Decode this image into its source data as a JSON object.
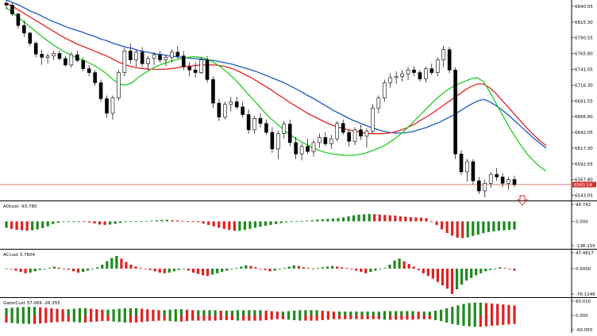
{
  "chart_data": [
    {
      "type": "candlestick",
      "price_axis": {
        "ticks": [
          "6840.05",
          "6815.30",
          "6790.55",
          "6765.80",
          "6741.05",
          "6716.30",
          "6691.55",
          "6666.80",
          "6642.05",
          "6617.30",
          "6592.55",
          "6567.80",
          "6543.05"
        ],
        "ylim": [
          6535,
          6850
        ]
      },
      "current_price": {
        "value": 6560,
        "label": "6560.14",
        "color": "#d32f2f"
      },
      "candles": [
        [
          6845,
          6852,
          6835,
          6842
        ],
        [
          6842,
          6846,
          6825,
          6828
        ],
        [
          6828,
          6830,
          6805,
          6810
        ],
        [
          6810,
          6818,
          6792,
          6798
        ],
        [
          6798,
          6800,
          6778,
          6782
        ],
        [
          6782,
          6785,
          6760,
          6765
        ],
        [
          6765,
          6772,
          6748,
          6760
        ],
        [
          6760,
          6766,
          6750,
          6762
        ],
        [
          6762,
          6770,
          6756,
          6766
        ],
        [
          6766,
          6770,
          6755,
          6758
        ],
        [
          6758,
          6762,
          6745,
          6748
        ],
        [
          6748,
          6768,
          6744,
          6764
        ],
        [
          6764,
          6770,
          6752,
          6755
        ],
        [
          6755,
          6760,
          6738,
          6742
        ],
        [
          6742,
          6748,
          6730,
          6736
        ],
        [
          6736,
          6740,
          6715,
          6720
        ],
        [
          6720,
          6725,
          6690,
          6695
        ],
        [
          6695,
          6700,
          6665,
          6672
        ],
        [
          6672,
          6700,
          6662,
          6696
        ],
        [
          6696,
          6740,
          6692,
          6736
        ],
        [
          6736,
          6775,
          6730,
          6770
        ],
        [
          6770,
          6782,
          6750,
          6756
        ],
        [
          6756,
          6772,
          6745,
          6768
        ],
        [
          6768,
          6776,
          6745,
          6750
        ],
        [
          6750,
          6762,
          6740,
          6758
        ],
        [
          6758,
          6768,
          6748,
          6764
        ],
        [
          6764,
          6770,
          6752,
          6756
        ],
        [
          6756,
          6764,
          6746,
          6760
        ],
        [
          6760,
          6772,
          6752,
          6768
        ],
        [
          6768,
          6778,
          6758,
          6762
        ],
        [
          6762,
          6770,
          6740,
          6745
        ],
        [
          6745,
          6752,
          6730,
          6740
        ],
        [
          6740,
          6752,
          6728,
          6736
        ],
        [
          6736,
          6760,
          6734,
          6756
        ],
        [
          6756,
          6762,
          6720,
          6725
        ],
        [
          6725,
          6730,
          6680,
          6688
        ],
        [
          6688,
          6695,
          6660,
          6666
        ],
        [
          6666,
          6690,
          6662,
          6686
        ],
        [
          6686,
          6698,
          6675,
          6690
        ],
        [
          6690,
          6698,
          6678,
          6682
        ],
        [
          6682,
          6690,
          6665,
          6670
        ],
        [
          6670,
          6678,
          6640,
          6646
        ],
        [
          6646,
          6668,
          6640,
          6664
        ],
        [
          6664,
          6672,
          6650,
          6656
        ],
        [
          6656,
          6662,
          6638,
          6642
        ],
        [
          6642,
          6650,
          6610,
          6616
        ],
        [
          6616,
          6645,
          6600,
          6640
        ],
        [
          6640,
          6660,
          6632,
          6655
        ],
        [
          6655,
          6662,
          6620,
          6626
        ],
        [
          6626,
          6635,
          6600,
          6608
        ],
        [
          6608,
          6625,
          6598,
          6620
        ],
        [
          6620,
          6632,
          6608,
          6612
        ],
        [
          6612,
          6630,
          6604,
          6626
        ],
        [
          6626,
          6640,
          6618,
          6634
        ],
        [
          6634,
          6642,
          6620,
          6624
        ],
        [
          6624,
          6638,
          6616,
          6632
        ],
        [
          6632,
          6660,
          6628,
          6656
        ],
        [
          6656,
          6662,
          6638,
          6642
        ],
        [
          6642,
          6646,
          6620,
          6628
        ],
        [
          6628,
          6650,
          6622,
          6646
        ],
        [
          6646,
          6654,
          6630,
          6636
        ],
        [
          6636,
          6648,
          6618,
          6644
        ],
        [
          6644,
          6686,
          6640,
          6680
        ],
        [
          6680,
          6700,
          6672,
          6696
        ],
        [
          6696,
          6725,
          6690,
          6720
        ],
        [
          6720,
          6735,
          6712,
          6728
        ],
        [
          6728,
          6738,
          6718,
          6730
        ],
        [
          6730,
          6740,
          6722,
          6734
        ],
        [
          6734,
          6745,
          6724,
          6740
        ],
        [
          6740,
          6746,
          6730,
          6736
        ],
        [
          6736,
          6740,
          6722,
          6726
        ],
        [
          6726,
          6745,
          6720,
          6742
        ],
        [
          6742,
          6750,
          6732,
          6736
        ],
        [
          6736,
          6760,
          6730,
          6756
        ],
        [
          6756,
          6778,
          6745,
          6772
        ],
        [
          6772,
          6776,
          6735,
          6740
        ],
        [
          6740,
          6744,
          6600,
          6608
        ],
        [
          6608,
          6614,
          6575,
          6580
        ],
        [
          6580,
          6600,
          6565,
          6596
        ],
        [
          6596,
          6600,
          6560,
          6566
        ],
        [
          6566,
          6572,
          6545,
          6550
        ],
        [
          6550,
          6568,
          6540,
          6562
        ],
        [
          6562,
          6580,
          6555,
          6576
        ],
        [
          6576,
          6586,
          6566,
          6572
        ],
        [
          6572,
          6578,
          6556,
          6562
        ],
        [
          6562,
          6572,
          6552,
          6568
        ],
        [
          6568,
          6574,
          6556,
          6560
        ]
      ],
      "moving_averages": [
        {
          "color": "#1a56c4",
          "values": [
            6850,
            6846,
            6842,
            6837,
            6832,
            6828,
            6823,
            6818,
            6814,
            6810,
            6806,
            6803,
            6800,
            6796,
            6793,
            6789,
            6786,
            6782,
            6779,
            6776,
            6774,
            6771,
            6769,
            6767,
            6765,
            6764,
            6762,
            6761,
            6760,
            6759,
            6758,
            6757,
            6756,
            6755,
            6753,
            6751,
            6749,
            6746,
            6743,
            6740,
            6737,
            6733,
            6729,
            6725,
            6721,
            6716,
            6711,
            6706,
            6700,
            6695,
            6689,
            6683,
            6677,
            6672,
            6667,
            6662,
            6658,
            6654,
            6650,
            6647,
            6644,
            6642,
            6641,
            6641,
            6642,
            6644,
            6647,
            6650,
            6654,
            6658,
            6663,
            6668,
            6674,
            6680,
            6686,
            6691,
            6694,
            6690,
            6684,
            6677,
            6669,
            6660,
            6651,
            6642,
            6633,
            6625,
            6617
          ]
        },
        {
          "color": "#e02020",
          "values": [
            6845,
            6840,
            6834,
            6828,
            6822,
            6816,
            6810,
            6804,
            6798,
            6792,
            6787,
            6782,
            6778,
            6774,
            6770,
            6766,
            6762,
            6757,
            6752,
            6748,
            6745,
            6743,
            6742,
            6741,
            6741,
            6741,
            6742,
            6743,
            6745,
            6746,
            6747,
            6748,
            6748,
            6748,
            6747,
            6745,
            6742,
            6738,
            6733,
            6728,
            6722,
            6716,
            6710,
            6703,
            6697,
            6690,
            6684,
            6678,
            6672,
            6667,
            6662,
            6657,
            6653,
            6650,
            6647,
            6645,
            6643,
            6641,
            6640,
            6640,
            6640,
            6641,
            6643,
            6646,
            6650,
            6655,
            6661,
            6667,
            6673,
            6680,
            6687,
            6694,
            6701,
            6708,
            6714,
            6718,
            6718,
            6712,
            6703,
            6692,
            6681,
            6670,
            6659,
            6648,
            6638,
            6629,
            6621
          ]
        },
        {
          "color": "#22cc22",
          "values": [
            6838,
            6830,
            6822,
            6814,
            6806,
            6798,
            6790,
            6783,
            6776,
            6770,
            6765,
            6760,
            6756,
            6752,
            6747,
            6741,
            6734,
            6725,
            6718,
            6716,
            6720,
            6728,
            6735,
            6741,
            6746,
            6750,
            6753,
            6756,
            6758,
            6760,
            6761,
            6760,
            6757,
            6752,
            6746,
            6738,
            6729,
            6719,
            6708,
            6697,
            6686,
            6675,
            6665,
            6656,
            6648,
            6640,
            6633,
            6627,
            6622,
            6617,
            6613,
            6610,
            6608,
            6607,
            6606,
            6606,
            6607,
            6609,
            6612,
            6616,
            6620,
            6626,
            6633,
            6641,
            6650,
            6660,
            6670,
            6680,
            6690,
            6699,
            6707,
            6713,
            6718,
            6722,
            6726,
            6728,
            6722,
            6706,
            6688,
            6670,
            6652,
            6636,
            6621,
            6608,
            6597,
            6588,
            6581
          ]
        }
      ]
    },
    {
      "type": "bar",
      "title": "AOcust -93.780",
      "axis_ticks": [
        "94.742",
        "0.000",
        "-136.155"
      ],
      "ylim": [
        -136.155,
        94.742
      ],
      "up_color": "#1e8a1e",
      "down_color": "#e02020",
      "values": [
        -36,
        -42,
        -47,
        -50,
        -52,
        -50,
        -45,
        -38,
        -28,
        -15,
        -8,
        -3,
        -1,
        0,
        0,
        -2,
        -6,
        -12,
        -18,
        -20,
        -18,
        -14,
        -9,
        -4,
        -1,
        0,
        0,
        2,
        4,
        6,
        8,
        9,
        7,
        5,
        3,
        1,
        -1,
        -5,
        -12,
        -20,
        -28,
        -36,
        -42,
        -48,
        -52,
        -52,
        -48,
        -42,
        -36,
        -30,
        -25,
        -20,
        -15,
        -10,
        -5,
        -2,
        0,
        2,
        4,
        6,
        10,
        12,
        14,
        16,
        18,
        22,
        28,
        34,
        38,
        40,
        42,
        40,
        38,
        36,
        34,
        32,
        28,
        26,
        24,
        22,
        20,
        18,
        0,
        -20,
        -45,
        -65,
        -80,
        -92,
        -94,
        -90,
        -82,
        -74,
        -66,
        -60,
        -56,
        -52,
        -50,
        -48,
        -46
      ]
    },
    {
      "type": "bar",
      "title": "ACcust 3.7604",
      "axis_ticks": [
        "47.4817",
        "0.0000",
        "-76.1246"
      ],
      "ylim": [
        -76.1246,
        47.4817
      ],
      "up_color": "#1e8a1e",
      "down_color": "#e02020",
      "values": [
        0,
        -2,
        -6,
        -10,
        -14,
        -12,
        -8,
        -4,
        -2,
        2,
        6,
        3,
        0,
        -3,
        -8,
        -12,
        -10,
        -6,
        -2,
        4,
        12,
        22,
        32,
        38,
        30,
        20,
        12,
        6,
        2,
        0,
        -4,
        -8,
        -12,
        -14,
        -12,
        -8,
        -4,
        -2,
        -6,
        -12,
        -16,
        -20,
        -22,
        -18,
        -14,
        -10,
        -6,
        -2,
        2,
        6,
        10,
        8,
        4,
        0,
        -4,
        -8,
        -6,
        -2,
        2,
        6,
        10,
        8,
        4,
        2,
        0,
        2,
        4,
        6,
        8,
        6,
        4,
        2,
        -2,
        -6,
        -10,
        -14,
        -10,
        -6,
        -2,
        2,
        12,
        24,
        30,
        22,
        14,
        6,
        -4,
        -14,
        -22,
        -30,
        -40,
        -50,
        -60,
        -76,
        -62,
        -48,
        -36,
        -28,
        -20,
        -14,
        -8,
        -4,
        0,
        4,
        2,
        -2,
        -6
      ]
    },
    {
      "type": "bar",
      "title": "GatorCust 37.069 -26.355",
      "axis_ticks": [
        "60.010",
        "0.000",
        "-60.050"
      ],
      "ylim": [
        -60.05,
        60.01
      ],
      "up_color": "#1e8a1e",
      "down_color": "#e02020",
      "upper_values": [
        30,
        32,
        34,
        35,
        36,
        36,
        34,
        32,
        30,
        28,
        26,
        26,
        28,
        30,
        30,
        28,
        26,
        24,
        24,
        26,
        28,
        30,
        30,
        30,
        28,
        26,
        24,
        22,
        22,
        24,
        26,
        26,
        24,
        22,
        22,
        22,
        22,
        22,
        20,
        20,
        20,
        22,
        22,
        22,
        22,
        22,
        20,
        18,
        16,
        16,
        18,
        20,
        22,
        22,
        22,
        22,
        20,
        18,
        16,
        16,
        16,
        16,
        16,
        16,
        16,
        16,
        16,
        18,
        18,
        18,
        18,
        18,
        18,
        16,
        16,
        16,
        20,
        24,
        30,
        36,
        42,
        48,
        52,
        54,
        54,
        52,
        50,
        48,
        46,
        44,
        42
      ],
      "lower_values": [
        -30,
        -32,
        -34,
        -35,
        -36,
        -36,
        -34,
        -32,
        -30,
        -28,
        -26,
        -26,
        -28,
        -30,
        -30,
        -28,
        -26,
        -24,
        -24,
        -26,
        -28,
        -30,
        -30,
        -30,
        -28,
        -26,
        -24,
        -22,
        -22,
        -24,
        -26,
        -26,
        -24,
        -22,
        -22,
        -22,
        -22,
        -22,
        -20,
        -20,
        -20,
        -22,
        -22,
        -22,
        -22,
        -22,
        -20,
        -18,
        -16,
        -16,
        -18,
        -20,
        -22,
        -22,
        -22,
        -22,
        -20,
        -18,
        -16,
        -16,
        -16,
        -16,
        -16,
        -16,
        -16,
        -16,
        -16,
        -18,
        -18,
        -18,
        -18,
        -18,
        -18,
        -16,
        -16,
        -16,
        -20,
        -24,
        -30,
        -36,
        -40,
        -44,
        -46,
        -48,
        -48,
        -46,
        -44,
        -42,
        -40,
        -38,
        -36
      ]
    }
  ]
}
